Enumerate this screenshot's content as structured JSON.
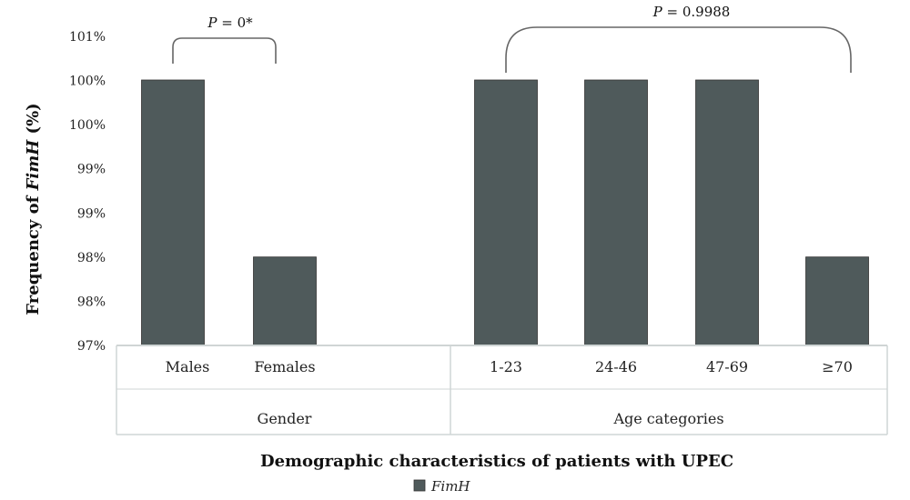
{
  "chart_data": {
    "type": "bar",
    "ylabel_prefix": "Frequency of ",
    "ylabel_italic": "FimH",
    "ylabel_suffix": " (%)",
    "xlabel": "Demographic characteristics of patients with UPEC",
    "y_tick_labels": [
      "97%",
      "98%",
      "98%",
      "99%",
      "99%",
      "100%",
      "100%",
      "101%"
    ],
    "ylim": [
      97,
      100.5
    ],
    "groups": [
      {
        "name": "Gender",
        "categories": [
          "Males",
          "Females"
        ],
        "values": [
          100,
          98
        ],
        "annotation": {
          "p_label": "P",
          "p_value": " = 0*"
        }
      },
      {
        "name": "Age categories",
        "categories": [
          "1-23",
          "24-46",
          "47-69",
          "≥70"
        ],
        "values": [
          100,
          100,
          100,
          98
        ],
        "annotation": {
          "p_label": "P",
          "p_value": " = 0.9988"
        }
      }
    ],
    "series": [
      {
        "name": "FimH",
        "color": "#4f5a5b"
      }
    ],
    "legend": {
      "position": "bottom-center"
    },
    "grid": false
  }
}
